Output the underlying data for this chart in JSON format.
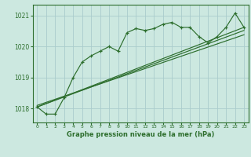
{
  "title": "Graphe pression niveau de la mer (hPa)",
  "background_color": "#cce8e0",
  "grid_color": "#aacccc",
  "line_color": "#2d6e2d",
  "x_ticks": [
    0,
    1,
    2,
    3,
    4,
    5,
    6,
    7,
    8,
    9,
    10,
    11,
    12,
    13,
    14,
    15,
    16,
    17,
    18,
    19,
    20,
    21,
    22,
    23
  ],
  "y_ticks": [
    1018,
    1019,
    1020,
    1021
  ],
  "ylim": [
    1017.55,
    1021.35
  ],
  "xlim": [
    -0.5,
    23.5
  ],
  "main_series": [
    [
      0,
      1018.05
    ],
    [
      1,
      1017.82
    ],
    [
      2,
      1017.82
    ],
    [
      3,
      1018.35
    ],
    [
      4,
      1019.0
    ],
    [
      5,
      1019.5
    ],
    [
      6,
      1019.7
    ],
    [
      7,
      1019.85
    ],
    [
      8,
      1020.0
    ],
    [
      9,
      1019.85
    ],
    [
      10,
      1020.45
    ],
    [
      11,
      1020.58
    ],
    [
      12,
      1020.52
    ],
    [
      13,
      1020.58
    ],
    [
      14,
      1020.72
    ],
    [
      15,
      1020.78
    ],
    [
      16,
      1020.62
    ],
    [
      17,
      1020.62
    ],
    [
      18,
      1020.32
    ],
    [
      19,
      1020.12
    ],
    [
      20,
      1020.32
    ],
    [
      21,
      1020.62
    ],
    [
      22,
      1021.08
    ],
    [
      23,
      1020.62
    ]
  ],
  "trend_series1": [
    [
      0,
      1018.05
    ],
    [
      23,
      1020.62
    ]
  ],
  "trend_series2": [
    [
      0,
      1018.05
    ],
    [
      23,
      1020.52
    ]
  ],
  "trend_series3": [
    [
      0,
      1018.1
    ],
    [
      23,
      1020.38
    ]
  ]
}
